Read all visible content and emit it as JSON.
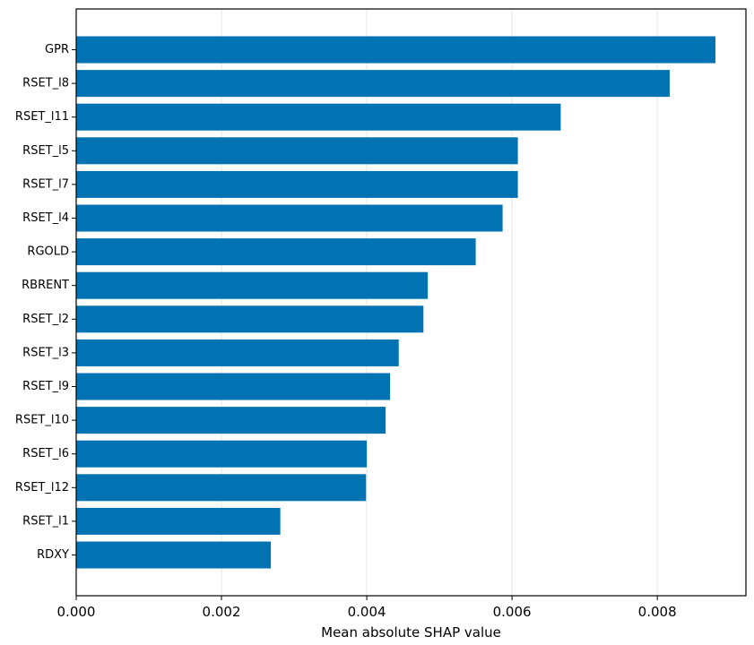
{
  "chart_data": {
    "type": "bar",
    "orientation": "horizontal",
    "title": "",
    "xlabel": "Mean absolute SHAP value",
    "ylabel": "",
    "xlim": [
      0.0,
      0.00922
    ],
    "grid": "vertical lines",
    "bar_color": "#0173b2",
    "categories": [
      "GPR",
      "RSET_l8",
      "RSET_l11",
      "RSET_l5",
      "RSET_l7",
      "RSET_l4",
      "RGOLD",
      "RBRENT",
      "RSET_l2",
      "RSET_l3",
      "RSET_l9",
      "RSET_l10",
      "RSET_l6",
      "RSET_l12",
      "RSET_l1",
      "RDXY"
    ],
    "values": [
      0.0088,
      0.00817,
      0.00667,
      0.00608,
      0.00608,
      0.00587,
      0.0055,
      0.00484,
      0.00478,
      0.00444,
      0.00432,
      0.00426,
      0.004,
      0.00399,
      0.00281,
      0.00268
    ],
    "x_ticks": [
      0.0,
      0.002,
      0.004,
      0.006,
      0.008
    ],
    "x_tick_labels": [
      "0.000",
      "0.002",
      "0.004",
      "0.006",
      "0.008"
    ]
  }
}
